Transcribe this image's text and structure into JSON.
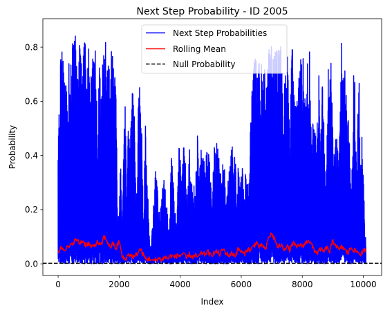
{
  "chart_data": {
    "type": "line",
    "title": "Next Step Probability - ID 2005",
    "xlabel": "Index",
    "ylabel": "Probability",
    "xlim": [
      -500,
      10600
    ],
    "ylim": [
      -0.043,
      0.905
    ],
    "x_ticks": [
      0,
      2000,
      4000,
      6000,
      8000,
      10000
    ],
    "y_ticks": [
      0.0,
      0.2,
      0.4,
      0.6,
      0.8
    ],
    "x_tick_labels": [
      "0",
      "2000",
      "4000",
      "6000",
      "8000",
      "10000"
    ],
    "y_tick_labels": [
      "0.0",
      "0.2",
      "0.4",
      "0.6",
      "0.8"
    ],
    "grid": false,
    "legend_position": "top-center",
    "series": [
      {
        "name": "Next Step Probabilities",
        "color": "#0000ff",
        "style": "solid",
        "x_range": [
          0,
          10080
        ],
        "peak_envelope": [
          [
            0,
            0.56
          ],
          [
            50,
            0.62
          ],
          [
            100,
            0.83
          ],
          [
            150,
            0.76
          ],
          [
            200,
            0.74
          ],
          [
            250,
            0.72
          ],
          [
            300,
            0.68
          ],
          [
            350,
            0.83
          ],
          [
            400,
            0.74
          ],
          [
            450,
            0.8
          ],
          [
            500,
            0.83
          ],
          [
            550,
            0.86
          ],
          [
            600,
            0.85
          ],
          [
            650,
            0.72
          ],
          [
            700,
            0.85
          ],
          [
            750,
            0.8
          ],
          [
            800,
            0.72
          ],
          [
            850,
            0.84
          ],
          [
            900,
            0.82
          ],
          [
            950,
            0.66
          ],
          [
            1000,
            0.81
          ],
          [
            1050,
            0.55
          ],
          [
            1100,
            0.85
          ],
          [
            1150,
            0.83
          ],
          [
            1200,
            0.84
          ],
          [
            1250,
            0.72
          ],
          [
            1300,
            0.45
          ],
          [
            1350,
            0.81
          ],
          [
            1400,
            0.58
          ],
          [
            1450,
            0.8
          ],
          [
            1500,
            0.82
          ],
          [
            1550,
            0.83
          ],
          [
            1600,
            0.74
          ],
          [
            1650,
            0.8
          ],
          [
            1700,
            0.65
          ],
          [
            1750,
            0.82
          ],
          [
            1800,
            0.81
          ],
          [
            1850,
            0.72
          ],
          [
            1900,
            0.61
          ],
          [
            1950,
            0.17
          ],
          [
            2000,
            0.2
          ],
          [
            2050,
            0.42
          ],
          [
            2100,
            0.1
          ],
          [
            2150,
            0.46
          ],
          [
            2200,
            0.6
          ],
          [
            2250,
            0.22
          ],
          [
            2300,
            0.52
          ],
          [
            2350,
            0.44
          ],
          [
            2400,
            0.63
          ],
          [
            2450,
            0.63
          ],
          [
            2500,
            0.6
          ],
          [
            2550,
            0.21
          ],
          [
            2600,
            0.35
          ],
          [
            2650,
            0.78
          ],
          [
            2700,
            0.65
          ],
          [
            2750,
            0.45
          ],
          [
            2800,
            0.1
          ],
          [
            2850,
            0.57
          ],
          [
            2900,
            0.34
          ],
          [
            2950,
            0.23
          ],
          [
            3000,
            0.07
          ],
          [
            3050,
            0.07
          ],
          [
            3100,
            0.17
          ],
          [
            3150,
            0.27
          ],
          [
            3200,
            0.37
          ],
          [
            3250,
            0.3
          ],
          [
            3300,
            0.19
          ],
          [
            3350,
            0.2
          ],
          [
            3400,
            0.27
          ],
          [
            3450,
            0.32
          ],
          [
            3500,
            0.35
          ],
          [
            3550,
            0.25
          ],
          [
            3600,
            0.15
          ],
          [
            3650,
            0.13
          ],
          [
            3700,
            0.42
          ],
          [
            3750,
            0.38
          ],
          [
            3800,
            0.3
          ],
          [
            3850,
            0.16
          ],
          [
            3900,
            0.19
          ],
          [
            3950,
            0.45
          ],
          [
            4000,
            0.43
          ],
          [
            4050,
            0.33
          ],
          [
            4100,
            0.45
          ],
          [
            4150,
            0.4
          ],
          [
            4200,
            0.34
          ],
          [
            4250,
            0.25
          ],
          [
            4300,
            0.45
          ],
          [
            4350,
            0.31
          ],
          [
            4400,
            0.3
          ],
          [
            4450,
            0.29
          ],
          [
            4500,
            0.26
          ],
          [
            4550,
            0.53
          ],
          [
            4600,
            0.36
          ],
          [
            4650,
            0.43
          ],
          [
            4700,
            0.42
          ],
          [
            4750,
            0.44
          ],
          [
            4800,
            0.37
          ],
          [
            4850,
            0.44
          ],
          [
            4900,
            0.4
          ],
          [
            4950,
            0.42
          ],
          [
            5000,
            0.3
          ],
          [
            5050,
            0.2
          ],
          [
            5100,
            0.45
          ],
          [
            5150,
            0.41
          ],
          [
            5200,
            0.5
          ],
          [
            5250,
            0.43
          ],
          [
            5300,
            0.34
          ],
          [
            5350,
            0.33
          ],
          [
            5400,
            0.42
          ],
          [
            5450,
            0.36
          ],
          [
            5500,
            0.22
          ],
          [
            5550,
            0.34
          ],
          [
            5600,
            0.35
          ],
          [
            5650,
            0.38
          ],
          [
            5700,
            0.46
          ],
          [
            5750,
            0.3
          ],
          [
            5800,
            0.44
          ],
          [
            5850,
            0.2
          ],
          [
            5900,
            0.38
          ],
          [
            5950,
            0.33
          ],
          [
            6000,
            0.34
          ],
          [
            6050,
            0.36
          ],
          [
            6100,
            0.24
          ],
          [
            6150,
            0.36
          ],
          [
            6200,
            0.33
          ],
          [
            6250,
            0.3
          ],
          [
            6300,
            0.52
          ],
          [
            6350,
            0.66
          ],
          [
            6400,
            0.72
          ],
          [
            6450,
            0.78
          ],
          [
            6500,
            0.76
          ],
          [
            6550,
            0.72
          ],
          [
            6600,
            0.77
          ],
          [
            6650,
            0.76
          ],
          [
            6700,
            0.71
          ],
          [
            6750,
            0.76
          ],
          [
            6800,
            0.7
          ],
          [
            6850,
            0.68
          ],
          [
            6900,
            0.8
          ],
          [
            6950,
            0.78
          ],
          [
            7000,
            0.81
          ],
          [
            7050,
            0.77
          ],
          [
            7100,
            0.78
          ],
          [
            7150,
            0.8
          ],
          [
            7200,
            0.79
          ],
          [
            7250,
            0.8
          ],
          [
            7300,
            0.81
          ],
          [
            7350,
            0.73
          ],
          [
            7400,
            0.65
          ],
          [
            7450,
            0.72
          ],
          [
            7500,
            0.8
          ],
          [
            7550,
            0.66
          ],
          [
            7600,
            0.43
          ],
          [
            7650,
            0.83
          ],
          [
            7700,
            0.78
          ],
          [
            7750,
            0.6
          ],
          [
            7800,
            0.63
          ],
          [
            7850,
            0.66
          ],
          [
            7900,
            0.81
          ],
          [
            7950,
            0.81
          ],
          [
            8000,
            0.69
          ],
          [
            8050,
            0.83
          ],
          [
            8100,
            0.6
          ],
          [
            8150,
            0.72
          ],
          [
            8200,
            0.81
          ],
          [
            8250,
            0.82
          ],
          [
            8300,
            0.43
          ],
          [
            8350,
            0.57
          ],
          [
            8400,
            0.65
          ],
          [
            8450,
            0.45
          ],
          [
            8500,
            0.6
          ],
          [
            8550,
            0.75
          ],
          [
            8600,
            0.41
          ],
          [
            8650,
            0.7
          ],
          [
            8700,
            0.57
          ],
          [
            8750,
            0.3
          ],
          [
            8800,
            0.46
          ],
          [
            8850,
            0.75
          ],
          [
            8900,
            0.82
          ],
          [
            8950,
            0.73
          ],
          [
            9000,
            0.52
          ],
          [
            9050,
            0.43
          ],
          [
            9100,
            0.47
          ],
          [
            9150,
            0.5
          ],
          [
            9200,
            0.36
          ],
          [
            9250,
            0.82
          ],
          [
            9300,
            0.83
          ],
          [
            9350,
            0.69
          ],
          [
            9400,
            0.75
          ],
          [
            9450,
            0.6
          ],
          [
            9500,
            0.62
          ],
          [
            9550,
            0.43
          ],
          [
            9600,
            0.3
          ],
          [
            9650,
            0.42
          ],
          [
            9700,
            0.84
          ],
          [
            9750,
            0.42
          ],
          [
            9800,
            0.42
          ],
          [
            9850,
            0.82
          ],
          [
            9900,
            0.32
          ],
          [
            9950,
            0.56
          ],
          [
            10000,
            0.38
          ],
          [
            10050,
            0.1
          ]
        ]
      },
      {
        "name": "Rolling Mean",
        "color": "#ff0000",
        "style": "solid",
        "x": [
          0,
          100,
          200,
          300,
          400,
          500,
          600,
          700,
          800,
          900,
          1000,
          1100,
          1200,
          1300,
          1400,
          1500,
          1600,
          1700,
          1800,
          1900,
          2000,
          2100,
          2200,
          2300,
          2400,
          2500,
          2600,
          2700,
          2800,
          2900,
          3000,
          3100,
          3200,
          3300,
          3400,
          3500,
          3600,
          3700,
          3800,
          3900,
          4000,
          4100,
          4200,
          4300,
          4400,
          4500,
          4600,
          4700,
          4800,
          4900,
          5000,
          5100,
          5200,
          5300,
          5400,
          5500,
          5600,
          5700,
          5800,
          5900,
          6000,
          6100,
          6200,
          6300,
          6400,
          6500,
          6600,
          6700,
          6800,
          6900,
          7000,
          7100,
          7200,
          7300,
          7400,
          7500,
          7600,
          7700,
          7800,
          7900,
          8000,
          8100,
          8200,
          8300,
          8400,
          8500,
          8600,
          8700,
          8800,
          8900,
          9000,
          9100,
          9200,
          9300,
          9400,
          9500,
          9600,
          9700,
          9800,
          9900,
          10000,
          10080
        ],
        "values": [
          0.045,
          0.06,
          0.055,
          0.06,
          0.065,
          0.08,
          0.09,
          0.075,
          0.085,
          0.07,
          0.075,
          0.06,
          0.07,
          0.08,
          0.065,
          0.1,
          0.085,
          0.06,
          0.075,
          0.055,
          0.085,
          0.025,
          0.015,
          0.035,
          0.03,
          0.025,
          0.04,
          0.055,
          0.03,
          0.015,
          0.02,
          0.01,
          0.015,
          0.02,
          0.015,
          0.025,
          0.02,
          0.03,
          0.025,
          0.03,
          0.03,
          0.04,
          0.02,
          0.035,
          0.025,
          0.03,
          0.025,
          0.04,
          0.035,
          0.045,
          0.03,
          0.04,
          0.045,
          0.035,
          0.055,
          0.04,
          0.03,
          0.04,
          0.03,
          0.055,
          0.045,
          0.035,
          0.055,
          0.05,
          0.065,
          0.08,
          0.06,
          0.07,
          0.05,
          0.1,
          0.11,
          0.09,
          0.06,
          0.07,
          0.055,
          0.065,
          0.05,
          0.08,
          0.06,
          0.07,
          0.065,
          0.075,
          0.09,
          0.07,
          0.05,
          0.04,
          0.055,
          0.045,
          0.06,
          0.045,
          0.085,
          0.07,
          0.05,
          0.065,
          0.05,
          0.04,
          0.06,
          0.05,
          0.045,
          0.035,
          0.045,
          0.055
        ]
      },
      {
        "name": "Null Probability",
        "color": "#000000",
        "style": "dashed",
        "y": 0.002
      }
    ]
  }
}
